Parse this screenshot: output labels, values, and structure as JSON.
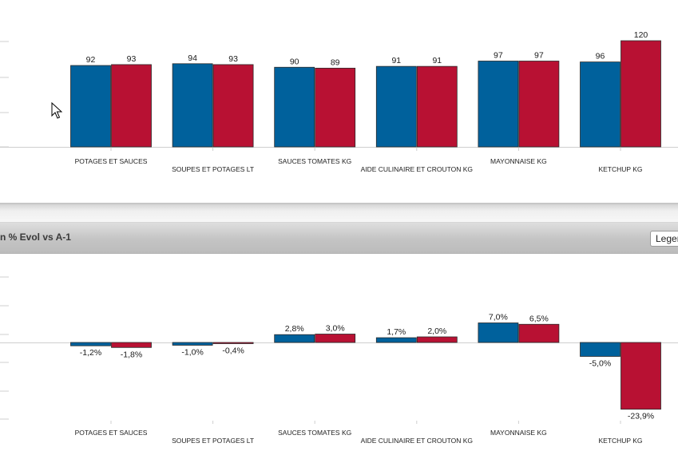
{
  "header": {
    "title": "n % Evol vs A-1",
    "legend_label": "Legend"
  },
  "colors": {
    "series1": "#00619c",
    "series2": "#b81133",
    "axis": "#cfcfcf"
  },
  "chart_data": [
    {
      "type": "bar",
      "title": "",
      "categories": [
        "POTAGES ET SAUCES",
        "SOUPES ET POTAGES LT",
        "SAUCES TOMATES KG",
        "AIDE CULINAIRE ET CROUTON KG",
        "MAYONNAISE KG",
        "KETCHUP KG"
      ],
      "series": [
        {
          "values": [
            92,
            94,
            90,
            91,
            97,
            96
          ],
          "labels": [
            "92",
            "94",
            "90",
            "91",
            "97",
            "96"
          ]
        },
        {
          "values": [
            93,
            93,
            89,
            91,
            97,
            120
          ],
          "labels": [
            "93",
            "93",
            "89",
            "91",
            "97",
            "120"
          ]
        }
      ],
      "ylim": [
        0,
        120
      ]
    },
    {
      "type": "bar",
      "title": "n % Evol vs A-1",
      "categories": [
        "POTAGES ET SAUCES",
        "SOUPES ET POTAGES LT",
        "SAUCES TOMATES KG",
        "AIDE CULINAIRE ET CROUTON KG",
        "MAYONNAISE KG",
        "KETCHUP KG"
      ],
      "series": [
        {
          "values": [
            -1.2,
            -1.0,
            2.8,
            1.7,
            7.0,
            -5.0
          ],
          "labels": [
            "-1,2%",
            "-1,0%",
            "2,8%",
            "1,7%",
            "7,0%",
            "-5,0%"
          ]
        },
        {
          "values": [
            -1.8,
            -0.4,
            3.0,
            2.0,
            6.5,
            -23.9
          ],
          "labels": [
            "-1,8%",
            "-0,4%",
            "3,0%",
            "2,0%",
            "6,5%",
            "-23,9%"
          ]
        }
      ],
      "ylim": [
        -30,
        10
      ]
    }
  ]
}
